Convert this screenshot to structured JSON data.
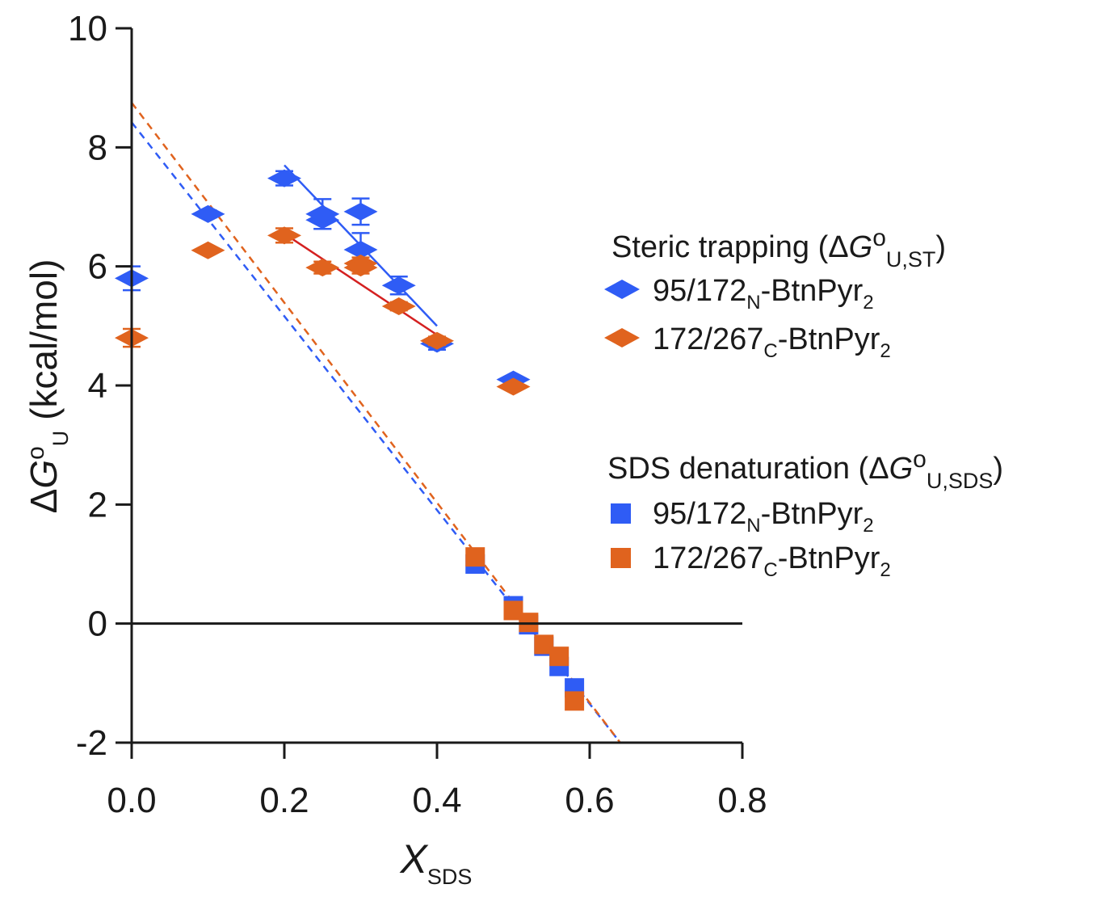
{
  "chart_data": {
    "type": "scatter",
    "xlabel": {
      "main": "X",
      "sub": "SDS"
    },
    "ylabel": {
      "delta": "Δ",
      "g": "G",
      "sup": "o",
      "sub": "U",
      "unit": " (kcal/mol)"
    },
    "xlim": [
      0,
      0.8
    ],
    "ylim": [
      -2,
      10
    ],
    "x_ticks": [
      0.0,
      0.2,
      0.4,
      0.6,
      0.8
    ],
    "x_tick_labels": [
      "0.0",
      "0.2",
      "0.4",
      "0.6",
      "0.8"
    ],
    "y_ticks": [
      -2,
      0,
      2,
      4,
      6,
      8,
      10
    ],
    "y_tick_labels": [
      "-2",
      "0",
      "2",
      "4",
      "6",
      "8",
      "10"
    ],
    "zero_line": true,
    "grid": false,
    "legend_position": "right",
    "colors": {
      "blue": "#2f5cf5",
      "orange": "#e0631e",
      "red_fit": "#d42020",
      "axis": "#1a1a1a"
    },
    "legend_groups": [
      {
        "title": {
          "text": "Steric trapping (",
          "delta": "Δ",
          "g": "G",
          "sup": "o",
          "sub": "U,ST",
          "close": ")"
        },
        "entries": [
          {
            "marker": "diamond",
            "color": "blue",
            "prefix": "95/172",
            "sub": "N",
            "suffix": "-BtnPyr",
            "sub2": "2"
          },
          {
            "marker": "diamond",
            "color": "orange",
            "prefix": "172/267",
            "sub": "C",
            "suffix": "-BtnPyr",
            "sub2": "2"
          }
        ]
      },
      {
        "title": {
          "text": "SDS denaturation (",
          "delta": "Δ",
          "g": "G",
          "sup": "o",
          "sub": "U,SDS",
          "close": ")"
        },
        "entries": [
          {
            "marker": "square",
            "color": "blue",
            "prefix": "95/172",
            "sub": "N",
            "suffix": "-BtnPyr",
            "sub2": "2"
          },
          {
            "marker": "square",
            "color": "orange",
            "prefix": "172/267",
            "sub": "C",
            "suffix": "-BtnPyr",
            "sub2": "2"
          }
        ]
      }
    ],
    "series": [
      {
        "marker": "diamond",
        "color": "blue",
        "points": [
          {
            "x": 0.0,
            "y": 5.8,
            "err": 0.2
          },
          {
            "x": 0.1,
            "y": 6.88,
            "err": 0.06
          },
          {
            "x": 0.2,
            "y": 7.48,
            "err": 0.12
          },
          {
            "x": 0.25,
            "y": 6.78,
            "err": 0.15
          },
          {
            "x": 0.25,
            "y": 6.88,
            "err": 0.25
          },
          {
            "x": 0.3,
            "y": 6.92,
            "err": 0.22
          },
          {
            "x": 0.3,
            "y": 6.28,
            "err": 0.28
          },
          {
            "x": 0.35,
            "y": 5.68,
            "err": 0.15
          },
          {
            "x": 0.4,
            "y": 4.7,
            "err": 0.1
          },
          {
            "x": 0.5,
            "y": 4.1,
            "err": 0.05
          }
        ]
      },
      {
        "marker": "diamond",
        "color": "orange",
        "points": [
          {
            "x": 0.0,
            "y": 4.8,
            "err": 0.15
          },
          {
            "x": 0.1,
            "y": 6.27,
            "err": 0.05
          },
          {
            "x": 0.2,
            "y": 6.52,
            "err": 0.12
          },
          {
            "x": 0.25,
            "y": 5.98,
            "err": 0.1
          },
          {
            "x": 0.3,
            "y": 6.05,
            "err": 0.1
          },
          {
            "x": 0.3,
            "y": 5.98,
            "err": 0.1
          },
          {
            "x": 0.35,
            "y": 5.33,
            "err": 0.07
          },
          {
            "x": 0.4,
            "y": 4.75,
            "err": 0.07
          },
          {
            "x": 0.5,
            "y": 3.98,
            "err": 0.05
          }
        ]
      },
      {
        "marker": "square",
        "color": "blue",
        "points": [
          {
            "x": 0.45,
            "y": 1.0
          },
          {
            "x": 0.5,
            "y": 0.3
          },
          {
            "x": 0.52,
            "y": -0.02
          },
          {
            "x": 0.54,
            "y": -0.38
          },
          {
            "x": 0.56,
            "y": -0.72
          },
          {
            "x": 0.58,
            "y": -1.08
          }
        ]
      },
      {
        "marker": "square",
        "color": "orange",
        "points": [
          {
            "x": 0.45,
            "y": 1.12
          },
          {
            "x": 0.5,
            "y": 0.22
          },
          {
            "x": 0.52,
            "y": 0.02
          },
          {
            "x": 0.54,
            "y": -0.35
          },
          {
            "x": 0.56,
            "y": -0.55
          },
          {
            "x": 0.58,
            "y": -1.3
          }
        ]
      }
    ],
    "fit_lines": [
      {
        "color": "blue",
        "style": "solid",
        "x": [
          0.2,
          0.4
        ],
        "y": [
          7.7,
          5.0
        ]
      },
      {
        "color": "red_fit",
        "style": "solid",
        "x": [
          0.2,
          0.4
        ],
        "y": [
          6.55,
          4.85
        ]
      },
      {
        "color": "blue",
        "style": "dashed",
        "x": [
          0.0,
          0.64
        ],
        "y": [
          8.42,
          -2.0
        ]
      },
      {
        "color": "orange",
        "style": "dashed",
        "x": [
          0.0,
          0.64
        ],
        "y": [
          8.75,
          -2.0
        ]
      }
    ]
  }
}
